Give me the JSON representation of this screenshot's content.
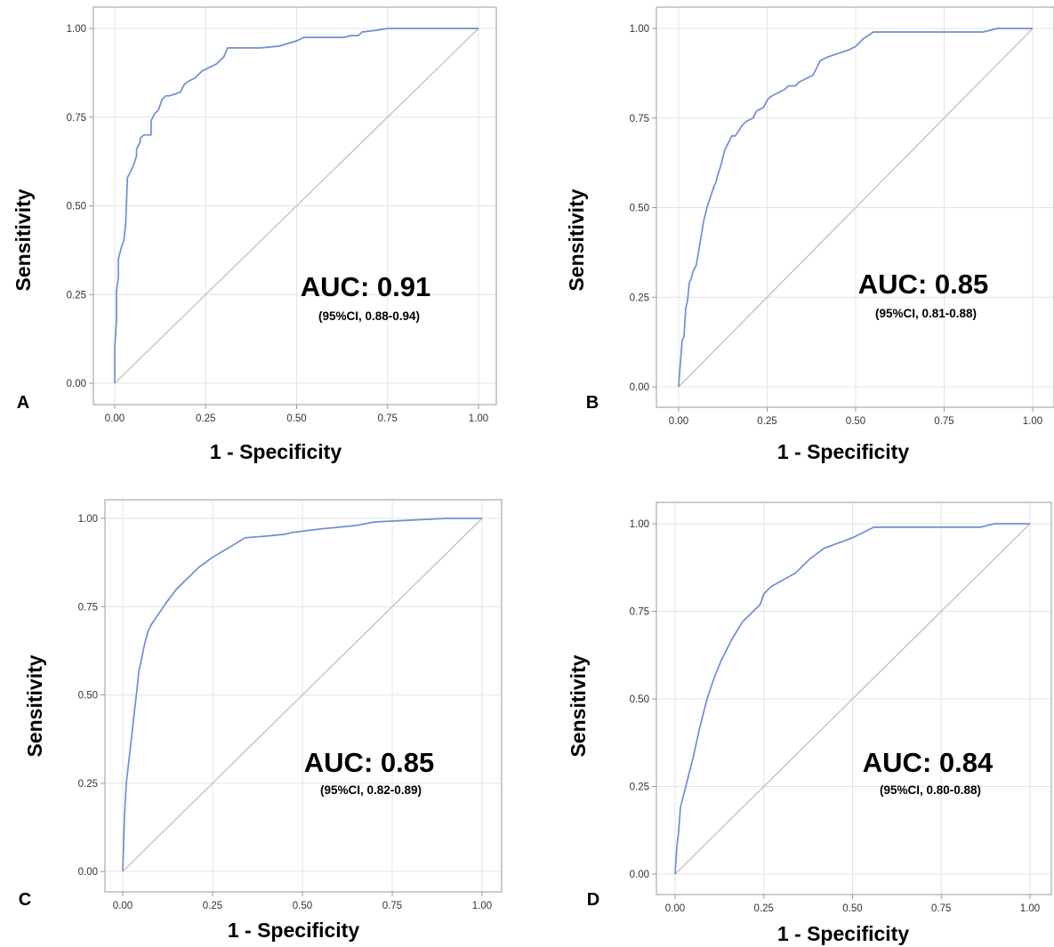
{
  "colors": {
    "roc_curve": "#6f8ed4",
    "reference_line": "#c4c4c4",
    "gridline": "#e4e4e4",
    "frame": "#9a9a9a",
    "text": "#000000"
  },
  "chart_data": [
    {
      "type": "line",
      "panel": "A",
      "title": "",
      "xlabel": "1 - Specificity",
      "ylabel": "Sensitivity",
      "xlim": [
        0,
        1
      ],
      "ylim": [
        0,
        1
      ],
      "xticks": [
        "0.00",
        "0.25",
        "0.50",
        "0.75",
        "1.00"
      ],
      "yticks": [
        "0.00",
        "0.25",
        "0.50",
        "0.75",
        "1.00"
      ],
      "grid": true,
      "annotation": {
        "auc": "AUC: 0.91",
        "ci": "(95%CI, 0.88-0.94)"
      },
      "series": [
        {
          "x": [
            0.0,
            0.0,
            0.005,
            0.005,
            0.01,
            0.01,
            0.015,
            0.02,
            0.025,
            0.03,
            0.035,
            0.04,
            0.045,
            0.05,
            0.06,
            0.06,
            0.07,
            0.07,
            0.08,
            0.09,
            0.1,
            0.1,
            0.11,
            0.12,
            0.13,
            0.14,
            0.15,
            0.18,
            0.19,
            0.2,
            0.22,
            0.24,
            0.26,
            0.28,
            0.3,
            0.31,
            0.35,
            0.4,
            0.45,
            0.5,
            0.52,
            0.6,
            0.63,
            0.65,
            0.67,
            0.68,
            0.72,
            0.75,
            0.8,
            0.9,
            1.0
          ],
          "y": [
            0.0,
            0.1,
            0.18,
            0.26,
            0.3,
            0.35,
            0.37,
            0.39,
            0.4,
            0.45,
            0.58,
            0.59,
            0.6,
            0.61,
            0.64,
            0.66,
            0.68,
            0.69,
            0.7,
            0.7,
            0.7,
            0.74,
            0.76,
            0.77,
            0.8,
            0.81,
            0.81,
            0.82,
            0.84,
            0.85,
            0.86,
            0.88,
            0.89,
            0.9,
            0.92,
            0.945,
            0.945,
            0.945,
            0.95,
            0.965,
            0.975,
            0.975,
            0.975,
            0.98,
            0.98,
            0.99,
            0.995,
            1.0,
            1.0,
            1.0,
            1.0
          ]
        }
      ]
    },
    {
      "type": "line",
      "panel": "B",
      "title": "",
      "xlabel": "1 - Specificity",
      "ylabel": "Sensitivity",
      "xlim": [
        0,
        1
      ],
      "ylim": [
        0,
        1
      ],
      "xticks": [
        "0.00",
        "0.25",
        "0.50",
        "0.75",
        "1.00"
      ],
      "yticks": [
        "0.00",
        "0.25",
        "0.50",
        "0.75",
        "1.00"
      ],
      "grid": true,
      "annotation": {
        "auc": "AUC: 0.85",
        "ci": "(95%CI, 0.81-0.88)"
      },
      "series": [
        {
          "x": [
            0.0,
            0.005,
            0.01,
            0.015,
            0.02,
            0.025,
            0.03,
            0.035,
            0.04,
            0.05,
            0.055,
            0.06,
            0.065,
            0.07,
            0.08,
            0.09,
            0.1,
            0.105,
            0.11,
            0.12,
            0.13,
            0.14,
            0.15,
            0.16,
            0.18,
            0.19,
            0.21,
            0.22,
            0.24,
            0.25,
            0.26,
            0.28,
            0.3,
            0.31,
            0.33,
            0.34,
            0.36,
            0.38,
            0.39,
            0.4,
            0.42,
            0.45,
            0.48,
            0.5,
            0.52,
            0.55,
            0.6,
            0.7,
            0.8,
            0.86,
            0.9,
            1.0
          ],
          "y": [
            0.0,
            0.07,
            0.13,
            0.14,
            0.22,
            0.24,
            0.29,
            0.3,
            0.32,
            0.34,
            0.37,
            0.4,
            0.43,
            0.46,
            0.5,
            0.53,
            0.56,
            0.57,
            0.59,
            0.62,
            0.66,
            0.68,
            0.7,
            0.7,
            0.73,
            0.74,
            0.75,
            0.77,
            0.78,
            0.8,
            0.81,
            0.82,
            0.83,
            0.84,
            0.84,
            0.85,
            0.86,
            0.87,
            0.89,
            0.91,
            0.92,
            0.93,
            0.94,
            0.95,
            0.97,
            0.99,
            0.99,
            0.99,
            0.99,
            0.99,
            1.0,
            1.0
          ]
        }
      ]
    },
    {
      "type": "line",
      "panel": "C",
      "title": "",
      "xlabel": "1 - Specificity",
      "ylabel": "Sensitivity",
      "xlim": [
        0,
        1
      ],
      "ylim": [
        0,
        1
      ],
      "xticks": [
        "0.00",
        "0.25",
        "0.50",
        "0.75",
        "1.00"
      ],
      "yticks": [
        "0.00",
        "0.25",
        "0.50",
        "0.75",
        "1.00"
      ],
      "grid": true,
      "annotation": {
        "auc": "AUC: 0.85",
        "ci": "(95%CI, 0.82-0.89)"
      },
      "series": [
        {
          "x": [
            0.0,
            0.005,
            0.01,
            0.02,
            0.03,
            0.04,
            0.045,
            0.05,
            0.06,
            0.07,
            0.08,
            0.1,
            0.12,
            0.15,
            0.18,
            0.21,
            0.25,
            0.3,
            0.34,
            0.4,
            0.45,
            0.47,
            0.55,
            0.65,
            0.7,
            0.8,
            0.9,
            1.0
          ],
          "y": [
            0.0,
            0.16,
            0.25,
            0.34,
            0.43,
            0.52,
            0.57,
            0.59,
            0.64,
            0.68,
            0.7,
            0.73,
            0.76,
            0.8,
            0.83,
            0.86,
            0.89,
            0.92,
            0.945,
            0.95,
            0.955,
            0.96,
            0.97,
            0.98,
            0.99,
            0.995,
            1.0,
            1.0
          ]
        }
      ]
    },
    {
      "type": "line",
      "panel": "D",
      "title": "",
      "xlabel": "1 - Specificity",
      "ylabel": "Sensitivity",
      "xlim": [
        0,
        1
      ],
      "ylim": [
        0,
        1
      ],
      "xticks": [
        "0.00",
        "0.25",
        "0.50",
        "0.75",
        "1.00"
      ],
      "yticks": [
        "0.00",
        "0.25",
        "0.50",
        "0.75",
        "1.00"
      ],
      "grid": true,
      "annotation": {
        "auc": "AUC: 0.84",
        "ci": "(95%CI, 0.80-0.88)"
      },
      "series": [
        {
          "x": [
            0.0,
            0.005,
            0.01,
            0.015,
            0.03,
            0.05,
            0.07,
            0.09,
            0.11,
            0.13,
            0.16,
            0.19,
            0.22,
            0.24,
            0.25,
            0.27,
            0.34,
            0.38,
            0.42,
            0.5,
            0.56,
            0.6,
            0.7,
            0.8,
            0.86,
            0.9,
            1.0
          ],
          "y": [
            0.0,
            0.08,
            0.12,
            0.19,
            0.25,
            0.33,
            0.42,
            0.5,
            0.56,
            0.61,
            0.67,
            0.72,
            0.75,
            0.77,
            0.8,
            0.82,
            0.86,
            0.9,
            0.93,
            0.96,
            0.99,
            0.99,
            0.99,
            0.99,
            0.99,
            1.0,
            1.0
          ]
        }
      ]
    }
  ]
}
